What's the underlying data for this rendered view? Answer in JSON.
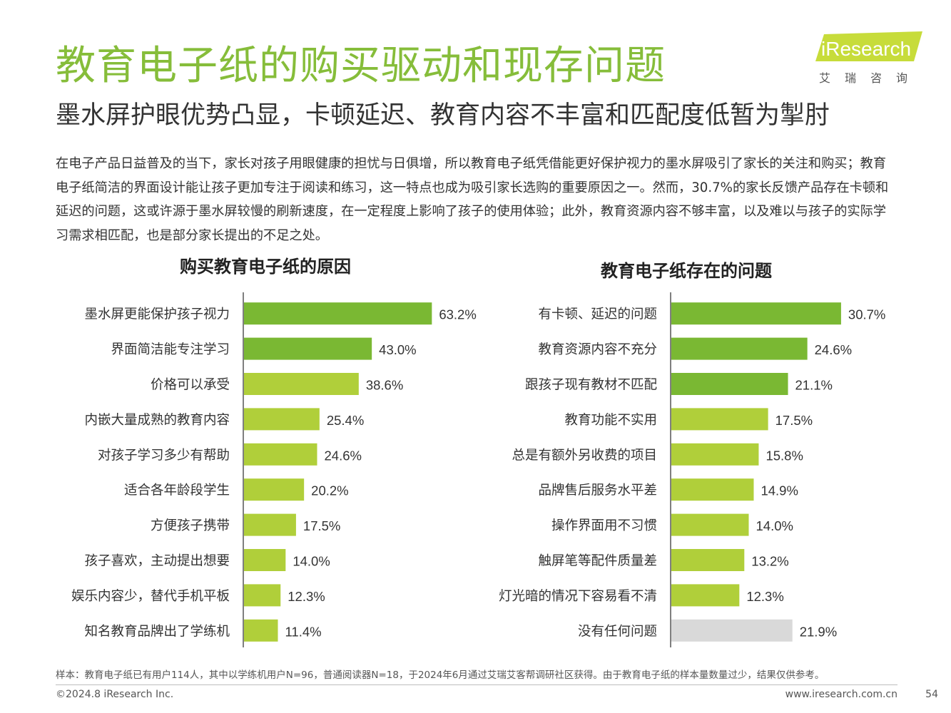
{
  "header": {
    "title": "教育电子纸的购买驱动和现存问题",
    "subtitle": "墨水屏护眼优势凸显，卡顿延迟、教育内容不丰富和匹配度低暂为掣肘"
  },
  "logo": {
    "brand": "iResearch",
    "chinese": "艾瑞咨询",
    "icon": "iresearch-logo-icon"
  },
  "summary": "在电子产品日益普及的当下，家长对孩子用眼健康的担忧与日俱增，所以教育电子纸凭借能更好保护视力的墨水屏吸引了家长的关注和购买；教育电子纸简洁的界面设计能让孩子更加专注于阅读和练习，这一特点也成为吸引家长选购的重要原因之一。然而，30.7%的家长反馈产品存在卡顿和延迟的问题，这或许源于墨水屏较慢的刷新速度，在一定程度上影响了孩子的使用体验；此外，教育资源内容不够丰富，以及难以与孩子的实际学习需求相匹配，也是部分家长提出的不足之处。",
  "colors": {
    "title": "#86bd3a",
    "highlight_bar": "#7ab833",
    "normal_bar": "#b0cf3a",
    "neutral_bar": "#d9d9d9"
  },
  "chart_data": [
    {
      "type": "bar",
      "orientation": "horizontal",
      "title": "购买教育电子纸的原因",
      "unit": "%",
      "categories": [
        "墨水屏更能保护孩子视力",
        "界面简洁能专注学习",
        "价格可以承受",
        "内嵌大量成熟的教育内容",
        "对孩子学习多少有帮助",
        "适合各年龄段学生",
        "方便孩子携带",
        "孩子喜欢，主动提出想要",
        "娱乐内容少，替代手机平板",
        "知名教育品牌出了学练机"
      ],
      "values": [
        63.2,
        43.0,
        38.6,
        25.4,
        24.6,
        20.2,
        17.5,
        14.0,
        12.3,
        11.4
      ],
      "labels": [
        "63.2%",
        "43.0%",
        "38.6%",
        "25.4%",
        "24.6%",
        "20.2%",
        "17.5%",
        "14.0%",
        "12.3%",
        "11.4%"
      ],
      "highlight": [
        true,
        true,
        false,
        false,
        false,
        false,
        false,
        false,
        false,
        false
      ],
      "xlim": [
        0,
        66
      ]
    },
    {
      "type": "bar",
      "orientation": "horizontal",
      "title": "教育电子纸存在的问题",
      "unit": "%",
      "categories": [
        "有卡顿、延迟的问题",
        "教育资源内容不充分",
        "跟孩子现有教材不匹配",
        "教育功能不实用",
        "总是有额外另收费的项目",
        "品牌售后服务水平差",
        "操作界面用不习惯",
        "触屏笔等配件质量差",
        "灯光暗的情况下容易看不清",
        "没有任何问题"
      ],
      "values": [
        30.7,
        24.6,
        21.1,
        17.5,
        15.8,
        14.9,
        14.0,
        13.2,
        12.3,
        21.9
      ],
      "labels": [
        "30.7%",
        "24.6%",
        "21.1%",
        "17.5%",
        "15.8%",
        "14.9%",
        "14.0%",
        "13.2%",
        "12.3%",
        "21.9%"
      ],
      "highlight": [
        true,
        true,
        true,
        false,
        false,
        false,
        false,
        false,
        false,
        false
      ],
      "neutral": [
        false,
        false,
        false,
        false,
        false,
        false,
        false,
        false,
        false,
        true
      ],
      "xlim": [
        0,
        32
      ]
    }
  ],
  "footer": {
    "note": "样本：教育电子纸已有用户114人，其中以学练机用户N=96，普通阅读器N=18，于2024年6月通过艾瑞艾客帮调研社区获得。由于教育电子纸的样本量数量过少，结果仅供参考。",
    "copyright": "©2024.8 iResearch Inc.",
    "website": "www.iresearch.com.cn",
    "page": "54"
  }
}
